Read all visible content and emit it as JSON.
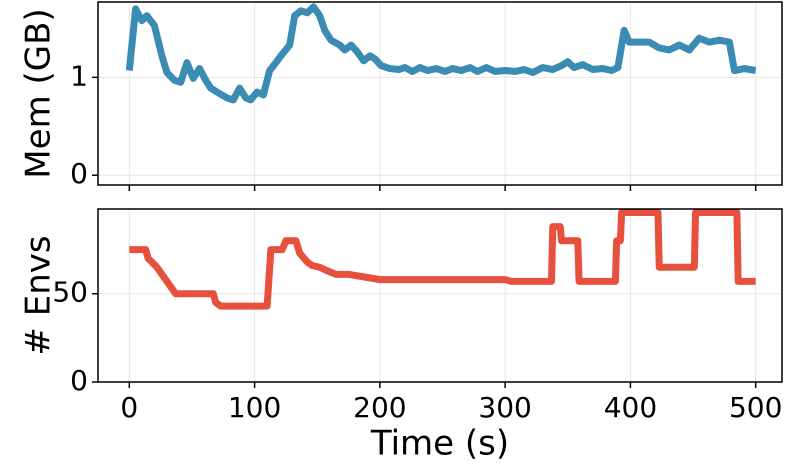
{
  "chart_data": [
    {
      "type": "line",
      "ylabel": "Mem (GB)",
      "color": "#3a8cb3",
      "x": [
        0,
        5,
        10,
        14,
        20,
        26,
        30,
        36,
        41,
        46,
        51,
        56,
        61,
        65,
        70,
        74,
        78,
        83,
        88,
        93,
        97,
        102,
        107,
        112,
        117,
        121,
        128,
        132,
        137,
        142,
        147,
        152,
        156,
        161,
        168,
        172,
        177,
        182,
        187,
        192,
        196,
        201,
        208,
        215,
        220,
        226,
        232,
        238,
        245,
        252,
        258,
        265,
        272,
        278,
        285,
        292,
        300,
        308,
        315,
        322,
        330,
        338,
        345,
        350,
        355,
        362,
        370,
        378,
        385,
        390,
        395,
        399,
        407,
        415,
        423,
        431,
        439,
        447,
        455,
        463,
        471,
        479,
        483,
        491,
        500
      ],
      "values": [
        1.07,
        1.7,
        1.58,
        1.63,
        1.53,
        1.22,
        1.05,
        0.97,
        0.95,
        1.15,
        0.99,
        1.09,
        0.97,
        0.89,
        0.85,
        0.82,
        0.79,
        0.77,
        0.89,
        0.79,
        0.77,
        0.85,
        0.82,
        1.07,
        1.15,
        1.22,
        1.33,
        1.63,
        1.68,
        1.66,
        1.72,
        1.63,
        1.48,
        1.38,
        1.33,
        1.28,
        1.33,
        1.26,
        1.17,
        1.22,
        1.19,
        1.12,
        1.09,
        1.08,
        1.1,
        1.06,
        1.1,
        1.07,
        1.09,
        1.06,
        1.09,
        1.07,
        1.1,
        1.06,
        1.1,
        1.06,
        1.07,
        1.06,
        1.08,
        1.05,
        1.1,
        1.08,
        1.12,
        1.16,
        1.1,
        1.13,
        1.08,
        1.09,
        1.07,
        1.1,
        1.48,
        1.36,
        1.36,
        1.36,
        1.3,
        1.28,
        1.33,
        1.28,
        1.4,
        1.36,
        1.38,
        1.36,
        1.07,
        1.09,
        1.07
      ],
      "xlim": [
        -25,
        521
      ],
      "xticks": [
        0,
        100,
        200,
        300,
        400,
        500
      ],
      "show_xtick_labels": false,
      "ylim": [
        -0.1,
        1.77
      ],
      "yticks": [
        0,
        1
      ],
      "grid": true
    },
    {
      "type": "line",
      "xlabel": "Time (s)",
      "ylabel": "# Envs",
      "color": "#e8503e",
      "x": [
        0,
        13,
        15,
        18,
        22,
        27,
        32,
        37,
        45,
        67,
        69,
        73,
        110,
        113,
        122,
        125,
        133,
        136,
        142,
        146,
        152,
        158,
        165,
        175,
        200,
        300,
        305,
        337,
        338,
        344,
        345,
        358,
        359,
        388,
        389,
        392,
        393,
        422,
        423,
        451,
        452,
        485,
        486,
        500
      ],
      "values": [
        75,
        75,
        70,
        68,
        65,
        60,
        55,
        50,
        50,
        50,
        45,
        43,
        43,
        75,
        75,
        80,
        80,
        73,
        68,
        66,
        65,
        63,
        61,
        61,
        58,
        58,
        57,
        57,
        88,
        88,
        80,
        80,
        57,
        57,
        80,
        80,
        96,
        96,
        65,
        65,
        96,
        96,
        57,
        57
      ],
      "xlim": [
        -25,
        521
      ],
      "xticks": [
        0,
        100,
        200,
        300,
        400,
        500
      ],
      "show_xtick_labels": true,
      "ylim": [
        0,
        98
      ],
      "yticks": [
        0,
        50
      ],
      "grid": true
    }
  ]
}
